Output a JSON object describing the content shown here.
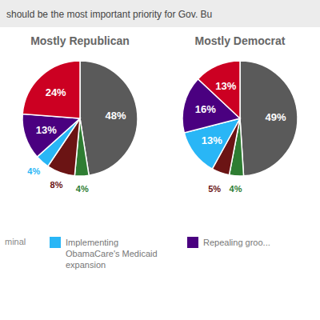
{
  "chart_data": {
    "type": "pie",
    "title": "should be the most important priority for Gov. Bu",
    "categories": [
      null,
      null,
      null,
      "Implementing\nObamaCare's Medicaid\nexpansion",
      "Repealing groo...",
      null
    ],
    "colors": [
      "#5a5a5a",
      "#2e7d32",
      "#6b1414",
      "#29b6f6",
      "#4a0080",
      "#cc0022"
    ],
    "series": [
      {
        "name": "Mostly Republican",
        "values": [
          48,
          4,
          8,
          4,
          13,
          24
        ],
        "value_labels": [
          "48%",
          "4%",
          "8%",
          "4%",
          "13%",
          "24%"
        ]
      },
      {
        "name": "Mostly Democrat",
        "values": [
          49,
          4,
          5,
          13,
          16,
          13
        ],
        "value_labels": [
          "49%",
          "4%",
          "5%",
          "13%",
          "16%",
          "13%"
        ]
      }
    ],
    "data_labels": true,
    "legend": "bottom",
    "annotations": [
      "minal"
    ]
  }
}
